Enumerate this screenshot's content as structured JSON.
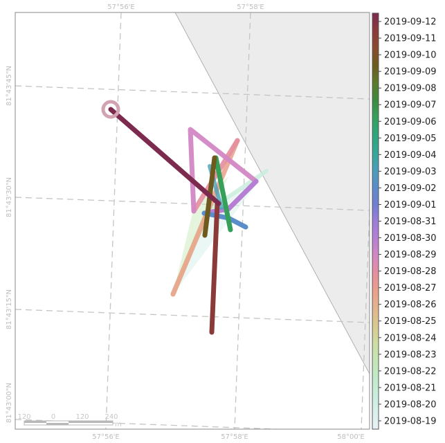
{
  "graticule": {
    "top_labels": [
      "57°56'E",
      "57°58'E"
    ],
    "bottom_labels": [
      "57°56'E",
      "57°58'E",
      "58°00'E"
    ],
    "left_labels": [
      "81°43'45\"N",
      "81°43'30\"N",
      "81°43'15\"N",
      "81°43'00\"N"
    ]
  },
  "scale_bar": {
    "ticks": [
      "120",
      "0",
      "120",
      "240"
    ],
    "unit": "m"
  },
  "colorbar": {
    "labels": [
      "2019-09-12",
      "2019-09-11",
      "2019-09-10",
      "2019-09-09",
      "2019-09-08",
      "2019-09-07",
      "2019-09-06",
      "2019-09-05",
      "2019-09-04",
      "2019-09-03",
      "2019-09-02",
      "2019-09-01",
      "2019-08-31",
      "2019-08-30",
      "2019-08-29",
      "2019-08-28",
      "2019-08-27",
      "2019-08-26",
      "2019-08-25",
      "2019-08-24",
      "2019-08-23",
      "2019-08-22",
      "2019-08-21",
      "2019-08-20",
      "2019-08-19"
    ],
    "colors": [
      "#7d2a4f",
      "#8b3a3a",
      "#8a4a2e",
      "#6e5a1e",
      "#5e7a2a",
      "#3d8a3e",
      "#36a05a",
      "#2ea57a",
      "#33a896",
      "#4a9fb8",
      "#5a8ec8",
      "#6f7fd2",
      "#9a7ed8",
      "#b77fd4",
      "#d387c4",
      "#e58e9e",
      "#e9a08a",
      "#e4b48c",
      "#d9c890",
      "#cfdca0",
      "#c4e6b4",
      "#bfeac8",
      "#c8eedc",
      "#d8f0ec",
      "#e9f1f6"
    ]
  },
  "chart_data": {
    "type": "map-track",
    "time_range": [
      "2019-08-19",
      "2019-09-12"
    ],
    "track_points": [
      {
        "date": "2019-08-19",
        "lon": "57°57.8'E",
        "lat": "81°43'28\"N"
      },
      {
        "date": "2019-08-22",
        "lon": "57°57.3'E",
        "lat": "81°43'22\"N"
      },
      {
        "date": "2019-08-27",
        "lon": "57°56.8'E",
        "lat": "81°43'18\"N"
      },
      {
        "date": "2019-08-28",
        "lon": "57°57.9'E",
        "lat": "81°43'35\"N"
      },
      {
        "date": "2019-08-29",
        "lon": "57°57.3'E",
        "lat": "81°43'27\"N"
      },
      {
        "date": "2019-08-29",
        "lon": "57°57.2'E",
        "lat": "81°43'39\"N"
      },
      {
        "date": "2019-08-31",
        "lon": "57°58.3'E",
        "lat": "81°43'31\"N"
      },
      {
        "date": "2019-09-01",
        "lon": "57°57.7'E",
        "lat": "81°43'28\"N"
      },
      {
        "date": "2019-09-02",
        "lon": "57°58.1'E",
        "lat": "81°43'27\"N"
      },
      {
        "date": "2019-09-05",
        "lon": "57°57.8'E",
        "lat": "81°43'34\"N"
      },
      {
        "date": "2019-09-08",
        "lon": "57°57.6'E",
        "lat": "81°43'25\"N"
      },
      {
        "date": "2019-09-10",
        "lon": "57°57.6'E",
        "lat": "81°43'11\"N"
      },
      {
        "date": "2019-09-12",
        "lon": "57°55.9'E",
        "lat": "81°43'40\"N"
      }
    ]
  }
}
